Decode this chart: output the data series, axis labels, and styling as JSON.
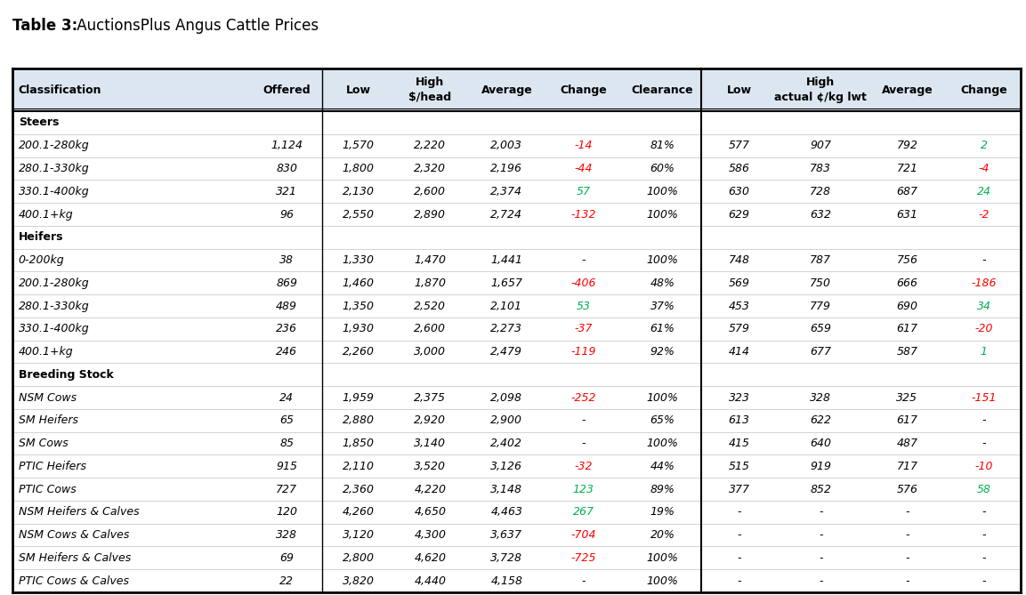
{
  "title_bold": "Table 3:",
  "title_normal": " AuctionsPlus Angus Cattle Prices",
  "header_row1": [
    "Classification",
    "Offered",
    "Low",
    "High",
    "Average",
    "Change",
    "Clearance",
    "Low",
    "High",
    "Average",
    "Change"
  ],
  "header_row2": [
    "",
    "",
    "",
    "$/head",
    "",
    "",
    "",
    "",
    "actual ¢/kg lwt",
    "",
    ""
  ],
  "col_widths_rel": [
    2.4,
    0.75,
    0.7,
    0.75,
    0.8,
    0.75,
    0.85,
    0.7,
    0.95,
    0.8,
    0.75
  ],
  "rows": [
    {
      "label": "Steers",
      "section": true,
      "data": [
        "",
        "",
        "",
        "",
        "",
        "",
        "",
        "",
        "",
        ""
      ]
    },
    {
      "label": "200.1-280kg",
      "section": false,
      "italic": true,
      "data": [
        "1,124",
        "1,570",
        "2,220",
        "2,003",
        "-14",
        "81%",
        "577",
        "907",
        "792",
        "2"
      ]
    },
    {
      "label": "280.1-330kg",
      "section": false,
      "italic": true,
      "data": [
        "830",
        "1,800",
        "2,320",
        "2,196",
        "-44",
        "60%",
        "586",
        "783",
        "721",
        "-4"
      ]
    },
    {
      "label": "330.1-400kg",
      "section": false,
      "italic": true,
      "data": [
        "321",
        "2,130",
        "2,600",
        "2,374",
        "57",
        "100%",
        "630",
        "728",
        "687",
        "24"
      ]
    },
    {
      "label": "400.1+kg",
      "section": false,
      "italic": true,
      "data": [
        "96",
        "2,550",
        "2,890",
        "2,724",
        "-132",
        "100%",
        "629",
        "632",
        "631",
        "-2"
      ]
    },
    {
      "label": "Heifers",
      "section": true,
      "data": [
        "",
        "",
        "",
        "",
        "",
        "",
        "",
        "",
        "",
        ""
      ]
    },
    {
      "label": "0-200kg",
      "section": false,
      "italic": true,
      "data": [
        "38",
        "1,330",
        "1,470",
        "1,441",
        "-",
        "100%",
        "748",
        "787",
        "756",
        "-"
      ]
    },
    {
      "label": "200.1-280kg",
      "section": false,
      "italic": true,
      "data": [
        "869",
        "1,460",
        "1,870",
        "1,657",
        "-406",
        "48%",
        "569",
        "750",
        "666",
        "-186"
      ]
    },
    {
      "label": "280.1-330kg",
      "section": false,
      "italic": true,
      "data": [
        "489",
        "1,350",
        "2,520",
        "2,101",
        "53",
        "37%",
        "453",
        "779",
        "690",
        "34"
      ]
    },
    {
      "label": "330.1-400kg",
      "section": false,
      "italic": true,
      "data": [
        "236",
        "1,930",
        "2,600",
        "2,273",
        "-37",
        "61%",
        "579",
        "659",
        "617",
        "-20"
      ]
    },
    {
      "label": "400.1+kg",
      "section": false,
      "italic": true,
      "data": [
        "246",
        "2,260",
        "3,000",
        "2,479",
        "-119",
        "92%",
        "414",
        "677",
        "587",
        "1"
      ]
    },
    {
      "label": "Breeding Stock",
      "section": true,
      "data": [
        "",
        "",
        "",
        "",
        "",
        "",
        "",
        "",
        "",
        ""
      ]
    },
    {
      "label": "NSM Cows",
      "section": false,
      "italic": true,
      "data": [
        "24",
        "1,959",
        "2,375",
        "2,098",
        "-252",
        "100%",
        "323",
        "328",
        "325",
        "-151"
      ]
    },
    {
      "label": "SM Heifers",
      "section": false,
      "italic": true,
      "data": [
        "65",
        "2,880",
        "2,920",
        "2,900",
        "-",
        "65%",
        "613",
        "622",
        "617",
        "-"
      ]
    },
    {
      "label": "SM Cows",
      "section": false,
      "italic": true,
      "data": [
        "85",
        "1,850",
        "3,140",
        "2,402",
        "-",
        "100%",
        "415",
        "640",
        "487",
        "-"
      ]
    },
    {
      "label": "PTIC Heifers",
      "section": false,
      "italic": true,
      "data": [
        "915",
        "2,110",
        "3,520",
        "3,126",
        "-32",
        "44%",
        "515",
        "919",
        "717",
        "-10"
      ]
    },
    {
      "label": "PTIC Cows",
      "section": false,
      "italic": true,
      "data": [
        "727",
        "2,360",
        "4,220",
        "3,148",
        "123",
        "89%",
        "377",
        "852",
        "576",
        "58"
      ]
    },
    {
      "label": "NSM Heifers & Calves",
      "section": false,
      "italic": true,
      "data": [
        "120",
        "4,260",
        "4,650",
        "4,463",
        "267",
        "19%",
        "-",
        "-",
        "-",
        "-"
      ]
    },
    {
      "label": "NSM Cows & Calves",
      "section": false,
      "italic": true,
      "data": [
        "328",
        "3,120",
        "4,300",
        "3,637",
        "-704",
        "20%",
        "-",
        "-",
        "-",
        "-"
      ]
    },
    {
      "label": "SM Heifers & Calves",
      "section": false,
      "italic": true,
      "data": [
        "69",
        "2,800",
        "4,620",
        "3,728",
        "-725",
        "100%",
        "-",
        "-",
        "-",
        "-"
      ]
    },
    {
      "label": "PTIC Cows & Calves",
      "section": false,
      "italic": true,
      "data": [
        "22",
        "3,820",
        "4,440",
        "4,158",
        "-",
        "100%",
        "-",
        "-",
        "-",
        "-"
      ]
    }
  ],
  "change_data_indices": [
    4,
    9
  ],
  "bg_color": "#ffffff",
  "header_bg": "#dce6f1",
  "border_color": "#000000",
  "text_color": "#000000",
  "red_color": "#ff0000",
  "green_color": "#00b050",
  "gray_line_color": "#c0c0c0"
}
